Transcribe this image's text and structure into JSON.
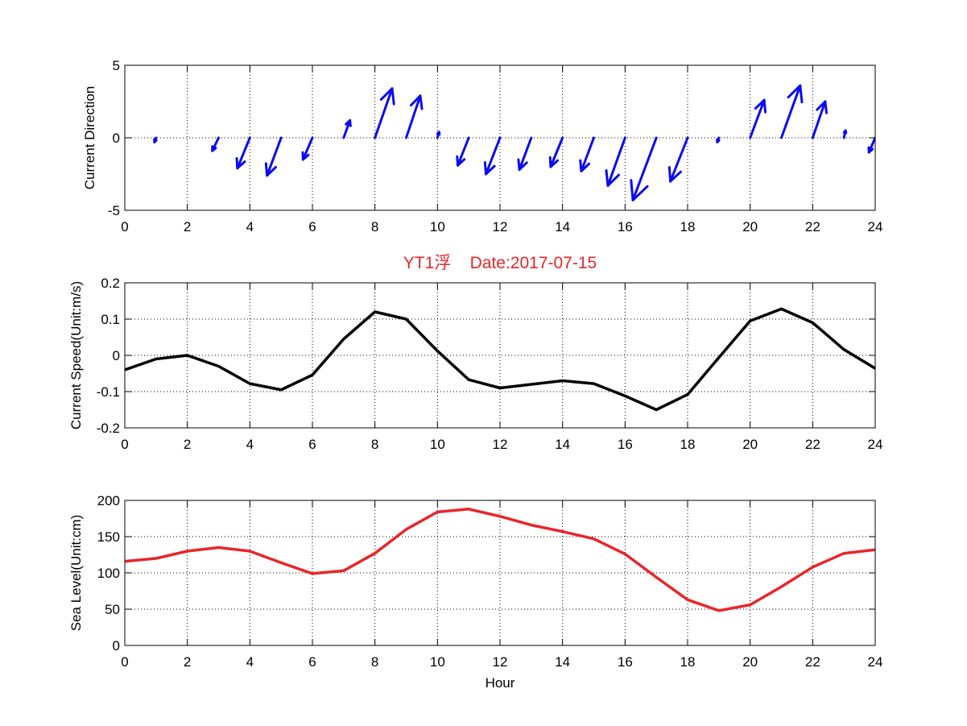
{
  "chart_data": [
    {
      "id": "direction",
      "type": "quiver",
      "title": "",
      "xlabel": "",
      "ylabel": "Current Direction",
      "xlim": [
        0,
        24
      ],
      "ylim": [
        -5,
        5
      ],
      "xticks": [
        0,
        2,
        4,
        6,
        8,
        10,
        12,
        14,
        16,
        18,
        20,
        22,
        24
      ],
      "yticks": [
        -5,
        0,
        5
      ],
      "grid": true,
      "color": "#0b0bf0",
      "vectors": [
        {
          "x": 0,
          "u": 0.0,
          "v": 0.0
        },
        {
          "x": 1,
          "u": -0.05,
          "v": -0.3
        },
        {
          "x": 2,
          "u": 0.0,
          "v": 0.0
        },
        {
          "x": 3,
          "u": -0.2,
          "v": -0.9
        },
        {
          "x": 4,
          "u": -0.4,
          "v": -2.1
        },
        {
          "x": 5,
          "u": -0.45,
          "v": -2.6
        },
        {
          "x": 6,
          "u": -0.3,
          "v": -1.5
        },
        {
          "x": 7,
          "u": 0.2,
          "v": 1.2
        },
        {
          "x": 8,
          "u": 0.55,
          "v": 3.4
        },
        {
          "x": 9,
          "u": 0.45,
          "v": 2.9
        },
        {
          "x": 10,
          "u": 0.05,
          "v": 0.4
        },
        {
          "x": 11,
          "u": -0.35,
          "v": -1.9
        },
        {
          "x": 12,
          "u": -0.45,
          "v": -2.5
        },
        {
          "x": 13,
          "u": -0.38,
          "v": -2.2
        },
        {
          "x": 14,
          "u": -0.38,
          "v": -2.0
        },
        {
          "x": 15,
          "u": -0.4,
          "v": -2.3
        },
        {
          "x": 16,
          "u": -0.55,
          "v": -3.3
        },
        {
          "x": 17,
          "u": -0.75,
          "v": -4.3
        },
        {
          "x": 18,
          "u": -0.55,
          "v": -3.0
        },
        {
          "x": 19,
          "u": -0.05,
          "v": -0.3
        },
        {
          "x": 20,
          "u": 0.45,
          "v": 2.6
        },
        {
          "x": 21,
          "u": 0.6,
          "v": 3.6
        },
        {
          "x": 22,
          "u": 0.4,
          "v": 2.5
        },
        {
          "x": 23,
          "u": 0.05,
          "v": 0.5
        },
        {
          "x": 24,
          "u": -0.2,
          "v": -1.0
        }
      ]
    },
    {
      "id": "speed",
      "type": "line",
      "title": "YT1浮    Date:2017-07-15",
      "xlabel": "",
      "ylabel": "Current Speed(Unit:m/s)",
      "xlim": [
        0,
        24
      ],
      "ylim": [
        -0.2,
        0.2
      ],
      "xticks": [
        0,
        2,
        4,
        6,
        8,
        10,
        12,
        14,
        16,
        18,
        20,
        22,
        24
      ],
      "yticks": [
        -0.2,
        -0.1,
        0,
        0.1,
        0.2
      ],
      "grid": true,
      "color": "#000000",
      "x": [
        0,
        1,
        2,
        3,
        4,
        5,
        6,
        7,
        8,
        9,
        10,
        11,
        12,
        13,
        14,
        15,
        16,
        17,
        18,
        19,
        20,
        21,
        22,
        23,
        24
      ],
      "values": [
        -0.04,
        -0.01,
        0.0,
        -0.03,
        -0.078,
        -0.095,
        -0.054,
        0.045,
        0.12,
        0.1,
        0.012,
        -0.067,
        -0.09,
        -0.08,
        -0.07,
        -0.078,
        -0.112,
        -0.15,
        -0.108,
        -0.006,
        0.095,
        0.128,
        0.09,
        0.016,
        -0.036
      ]
    },
    {
      "id": "sealevel",
      "type": "line",
      "title": "",
      "xlabel": "Hour",
      "ylabel": "Sea Level(Unit:cm)",
      "xlim": [
        0,
        24
      ],
      "ylim": [
        0,
        200
      ],
      "xticks": [
        0,
        2,
        4,
        6,
        8,
        10,
        12,
        14,
        16,
        18,
        20,
        22,
        24
      ],
      "yticks": [
        0,
        50,
        100,
        150,
        200
      ],
      "grid": true,
      "color": "#e8262a",
      "x": [
        0,
        1,
        2,
        3,
        4,
        5,
        6,
        7,
        8,
        9,
        10,
        11,
        12,
        13,
        14,
        15,
        16,
        17,
        18,
        19,
        20,
        21,
        22,
        23,
        24
      ],
      "values": [
        116,
        120,
        130,
        135,
        130,
        114,
        99,
        103,
        127,
        160,
        184,
        188,
        178,
        166,
        157,
        147,
        126,
        94,
        63,
        48,
        56,
        81,
        108,
        127,
        132
      ]
    }
  ]
}
